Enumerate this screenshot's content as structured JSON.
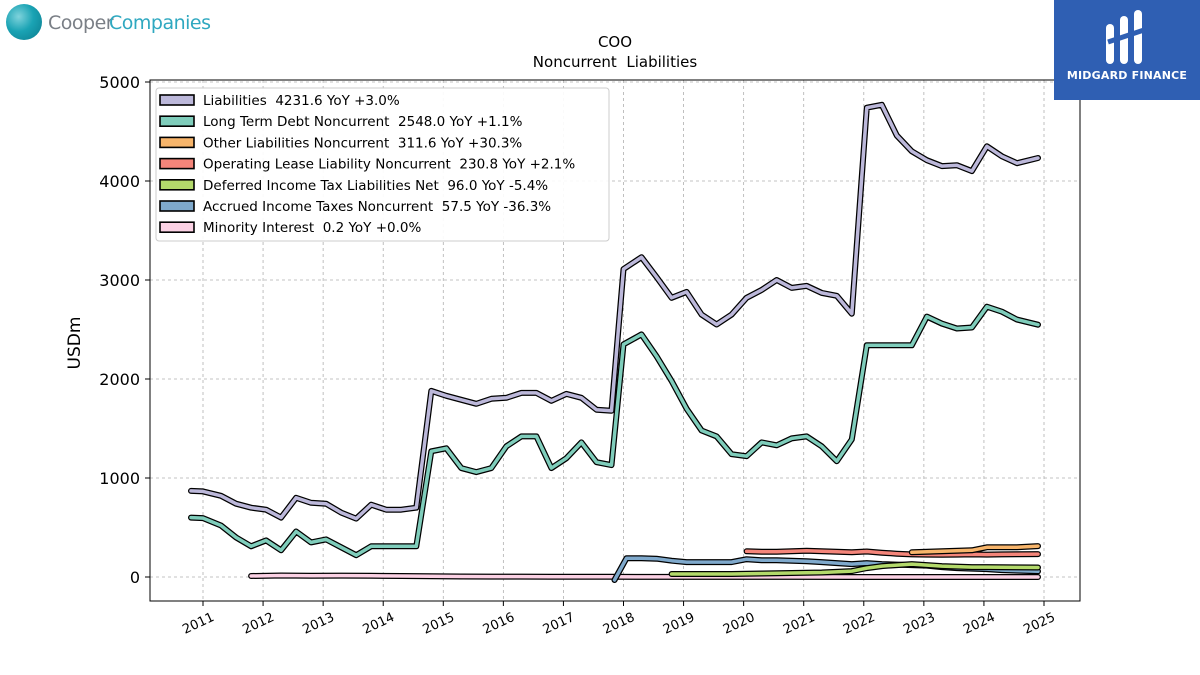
{
  "header": {
    "logo_left_part1": "Cooper",
    "logo_left_part2": "Companies",
    "logo_right_text": "MIDGARD FINANCE"
  },
  "chart_data": {
    "type": "line",
    "title": "COO",
    "subtitle": "Noncurrent  Liabilities",
    "ylabel": "USDm",
    "xlabel": "",
    "ylim": [
      -250,
      5000
    ],
    "xlim": [
      2010.2,
      2025.6
    ],
    "yticks": [
      0,
      1000,
      2000,
      3000,
      4000,
      5000
    ],
    "xticks": [
      2011,
      2012,
      2013,
      2014,
      2015,
      2016,
      2017,
      2018,
      2019,
      2020,
      2021,
      2022,
      2023,
      2024,
      2025
    ],
    "grid": true,
    "legend_position": "top-left",
    "series": [
      {
        "name": "Liabilities  4231.6 YoY +3.0%",
        "color": "#bcb8da",
        "points": [
          [
            2010.8,
            870
          ],
          [
            2011.0,
            865
          ],
          [
            2011.3,
            820
          ],
          [
            2011.55,
            740
          ],
          [
            2011.8,
            700
          ],
          [
            2012.05,
            680
          ],
          [
            2012.3,
            600
          ],
          [
            2012.55,
            800
          ],
          [
            2012.8,
            750
          ],
          [
            2013.05,
            740
          ],
          [
            2013.3,
            650
          ],
          [
            2013.55,
            590
          ],
          [
            2013.8,
            730
          ],
          [
            2014.05,
            680
          ],
          [
            2014.3,
            680
          ],
          [
            2014.55,
            700
          ],
          [
            2014.8,
            1880
          ],
          [
            2015.05,
            1830
          ],
          [
            2015.3,
            1790
          ],
          [
            2015.55,
            1750
          ],
          [
            2015.8,
            1800
          ],
          [
            2016.05,
            1810
          ],
          [
            2016.3,
            1860
          ],
          [
            2016.55,
            1860
          ],
          [
            2016.8,
            1780
          ],
          [
            2017.05,
            1850
          ],
          [
            2017.3,
            1810
          ],
          [
            2017.55,
            1690
          ],
          [
            2017.8,
            1680
          ],
          [
            2018.0,
            3110
          ],
          [
            2018.3,
            3230
          ],
          [
            2018.55,
            3030
          ],
          [
            2018.8,
            2820
          ],
          [
            2019.05,
            2880
          ],
          [
            2019.3,
            2650
          ],
          [
            2019.55,
            2550
          ],
          [
            2019.8,
            2650
          ],
          [
            2020.05,
            2820
          ],
          [
            2020.3,
            2900
          ],
          [
            2020.55,
            3000
          ],
          [
            2020.8,
            2920
          ],
          [
            2021.05,
            2940
          ],
          [
            2021.3,
            2870
          ],
          [
            2021.55,
            2840
          ],
          [
            2021.8,
            2660
          ],
          [
            2022.05,
            4740
          ],
          [
            2022.3,
            4770
          ],
          [
            2022.55,
            4460
          ],
          [
            2022.8,
            4300
          ],
          [
            2023.05,
            4210
          ],
          [
            2023.3,
            4150
          ],
          [
            2023.55,
            4160
          ],
          [
            2023.8,
            4100
          ],
          [
            2024.05,
            4350
          ],
          [
            2024.3,
            4250
          ],
          [
            2024.55,
            4180
          ],
          [
            2024.9,
            4232
          ]
        ]
      },
      {
        "name": "Long Term Debt Noncurrent  2548.0 YoY +1.1%",
        "color": "#7fcdbb",
        "points": [
          [
            2010.8,
            600
          ],
          [
            2011.0,
            595
          ],
          [
            2011.3,
            520
          ],
          [
            2011.55,
            400
          ],
          [
            2011.8,
            310
          ],
          [
            2012.05,
            370
          ],
          [
            2012.3,
            270
          ],
          [
            2012.55,
            460
          ],
          [
            2012.8,
            350
          ],
          [
            2013.05,
            380
          ],
          [
            2013.3,
            300
          ],
          [
            2013.55,
            220
          ],
          [
            2013.8,
            310
          ],
          [
            2014.05,
            310
          ],
          [
            2014.3,
            310
          ],
          [
            2014.55,
            310
          ],
          [
            2014.8,
            1270
          ],
          [
            2015.05,
            1300
          ],
          [
            2015.3,
            1100
          ],
          [
            2015.55,
            1060
          ],
          [
            2015.8,
            1100
          ],
          [
            2016.05,
            1320
          ],
          [
            2016.3,
            1420
          ],
          [
            2016.55,
            1420
          ],
          [
            2016.8,
            1100
          ],
          [
            2017.05,
            1200
          ],
          [
            2017.3,
            1360
          ],
          [
            2017.55,
            1160
          ],
          [
            2017.8,
            1130
          ],
          [
            2018.0,
            2350
          ],
          [
            2018.3,
            2450
          ],
          [
            2018.55,
            2230
          ],
          [
            2018.8,
            1980
          ],
          [
            2019.05,
            1700
          ],
          [
            2019.3,
            1480
          ],
          [
            2019.55,
            1420
          ],
          [
            2019.8,
            1240
          ],
          [
            2020.05,
            1220
          ],
          [
            2020.3,
            1360
          ],
          [
            2020.55,
            1330
          ],
          [
            2020.8,
            1400
          ],
          [
            2021.05,
            1420
          ],
          [
            2021.3,
            1320
          ],
          [
            2021.55,
            1170
          ],
          [
            2021.8,
            1390
          ],
          [
            2022.05,
            2340
          ],
          [
            2022.3,
            2340
          ],
          [
            2022.55,
            2340
          ],
          [
            2022.8,
            2340
          ],
          [
            2023.05,
            2630
          ],
          [
            2023.3,
            2560
          ],
          [
            2023.55,
            2510
          ],
          [
            2023.8,
            2520
          ],
          [
            2024.05,
            2730
          ],
          [
            2024.3,
            2680
          ],
          [
            2024.55,
            2600
          ],
          [
            2024.9,
            2548
          ]
        ]
      },
      {
        "name": "Other Liabilities Noncurrent  311.6 YoY +30.3%",
        "color": "#f7b56b",
        "points": [
          [
            2022.8,
            250
          ],
          [
            2023.05,
            255
          ],
          [
            2023.3,
            260
          ],
          [
            2023.55,
            265
          ],
          [
            2023.8,
            270
          ],
          [
            2024.05,
            300
          ],
          [
            2024.3,
            300
          ],
          [
            2024.55,
            300
          ],
          [
            2024.9,
            312
          ]
        ]
      },
      {
        "name": "Operating Lease Liability Noncurrent  230.8 YoY +2.1%",
        "color": "#f4857a",
        "points": [
          [
            2020.05,
            260
          ],
          [
            2020.3,
            255
          ],
          [
            2020.55,
            255
          ],
          [
            2020.8,
            260
          ],
          [
            2021.05,
            265
          ],
          [
            2021.3,
            260
          ],
          [
            2021.55,
            255
          ],
          [
            2021.8,
            250
          ],
          [
            2022.05,
            258
          ],
          [
            2022.3,
            245
          ],
          [
            2022.55,
            235
          ],
          [
            2022.8,
            228
          ],
          [
            2023.05,
            226
          ],
          [
            2023.3,
            225
          ],
          [
            2023.55,
            226
          ],
          [
            2023.8,
            228
          ],
          [
            2024.05,
            226
          ],
          [
            2024.3,
            228
          ],
          [
            2024.55,
            230
          ],
          [
            2024.9,
            231
          ]
        ]
      },
      {
        "name": "Deferred Income Tax Liabilities Net  96.0 YoY -5.4%",
        "color": "#b3d96b",
        "points": [
          [
            2018.8,
            30
          ],
          [
            2019.3,
            30
          ],
          [
            2019.8,
            30
          ],
          [
            2020.3,
            35
          ],
          [
            2020.8,
            40
          ],
          [
            2021.3,
            45
          ],
          [
            2021.8,
            60
          ],
          [
            2022.05,
            90
          ],
          [
            2022.3,
            110
          ],
          [
            2022.55,
            120
          ],
          [
            2022.8,
            130
          ],
          [
            2023.05,
            120
          ],
          [
            2023.3,
            110
          ],
          [
            2023.55,
            105
          ],
          [
            2023.8,
            100
          ],
          [
            2024.05,
            100
          ],
          [
            2024.3,
            98
          ],
          [
            2024.55,
            97
          ],
          [
            2024.9,
            96
          ]
        ]
      },
      {
        "name": "Accrued Income Taxes Noncurrent  57.5 YoY -36.3%",
        "color": "#7fa9cc",
        "points": [
          [
            2017.85,
            -30
          ],
          [
            2018.05,
            190
          ],
          [
            2018.3,
            190
          ],
          [
            2018.55,
            185
          ],
          [
            2018.8,
            165
          ],
          [
            2019.05,
            150
          ],
          [
            2019.3,
            150
          ],
          [
            2019.55,
            150
          ],
          [
            2019.8,
            150
          ],
          [
            2020.05,
            180
          ],
          [
            2020.3,
            170
          ],
          [
            2020.55,
            170
          ],
          [
            2020.8,
            165
          ],
          [
            2021.05,
            160
          ],
          [
            2021.3,
            150
          ],
          [
            2021.55,
            140
          ],
          [
            2021.8,
            130
          ],
          [
            2022.05,
            140
          ],
          [
            2022.3,
            130
          ],
          [
            2022.55,
            125
          ],
          [
            2022.8,
            120
          ],
          [
            2023.05,
            115
          ],
          [
            2023.3,
            100
          ],
          [
            2023.55,
            90
          ],
          [
            2023.8,
            85
          ],
          [
            2024.05,
            80
          ],
          [
            2024.3,
            70
          ],
          [
            2024.55,
            65
          ],
          [
            2024.9,
            58
          ]
        ]
      },
      {
        "name": "Minority Interest  0.2 YoY +0.0%",
        "color": "#fbd1e4",
        "points": [
          [
            2011.8,
            10
          ],
          [
            2012.3,
            15
          ],
          [
            2012.8,
            12
          ],
          [
            2013.3,
            14
          ],
          [
            2013.8,
            12
          ],
          [
            2014.3,
            10
          ],
          [
            2014.8,
            8
          ],
          [
            2015.3,
            5
          ],
          [
            2015.8,
            4
          ],
          [
            2016.3,
            4
          ],
          [
            2016.8,
            3
          ],
          [
            2017.3,
            2
          ],
          [
            2017.8,
            2
          ],
          [
            2018.3,
            1
          ],
          [
            2018.8,
            1
          ],
          [
            2019.8,
            1
          ],
          [
            2020.8,
            1
          ],
          [
            2021.8,
            0.5
          ],
          [
            2022.8,
            0.3
          ],
          [
            2023.8,
            0.2
          ],
          [
            2024.9,
            0.2
          ]
        ]
      }
    ]
  }
}
